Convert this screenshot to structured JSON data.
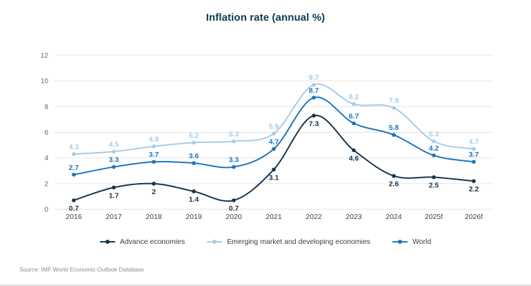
{
  "title": "Inflation rate (annual %)",
  "footer": {
    "source": "Source: IMF World Economic Outlook Database"
  },
  "chart_data": {
    "type": "line",
    "title": "Inflation rate (annual %)",
    "categories": [
      "2016",
      "2017",
      "2018",
      "2019",
      "2020",
      "2021",
      "2022",
      "2023",
      "2024",
      "2025f",
      "2026f"
    ],
    "series": [
      {
        "name": "Advance economies",
        "color": "#16334e",
        "values": [
          0.7,
          1.7,
          2,
          1.4,
          0.7,
          3.1,
          7.3,
          4.6,
          2.6,
          2.5,
          2.2
        ],
        "label_position": "below"
      },
      {
        "name": "Emerging market and developing economies",
        "color": "#a7cbe8",
        "values": [
          4.3,
          4.5,
          4.9,
          5.2,
          5.3,
          5.9,
          9.7,
          8.2,
          7.9,
          5.3,
          4.7
        ],
        "label_position": "above"
      },
      {
        "name": "World",
        "color": "#1b75bc",
        "values": [
          2.7,
          3.3,
          3.7,
          3.6,
          3.3,
          4.7,
          8.7,
          6.7,
          5.8,
          4.2,
          3.7
        ],
        "label_position": "above"
      }
    ],
    "y_ticks": [
      0,
      2,
      4,
      6,
      8,
      10,
      12
    ],
    "ylim": [
      0,
      12
    ],
    "grid": true,
    "value_labels": true,
    "legend_position": "bottom",
    "colors": {
      "grid": "#e4e4e4",
      "tick_label": "#666666",
      "category_label": "#404040",
      "title": "#0e3a53"
    }
  }
}
